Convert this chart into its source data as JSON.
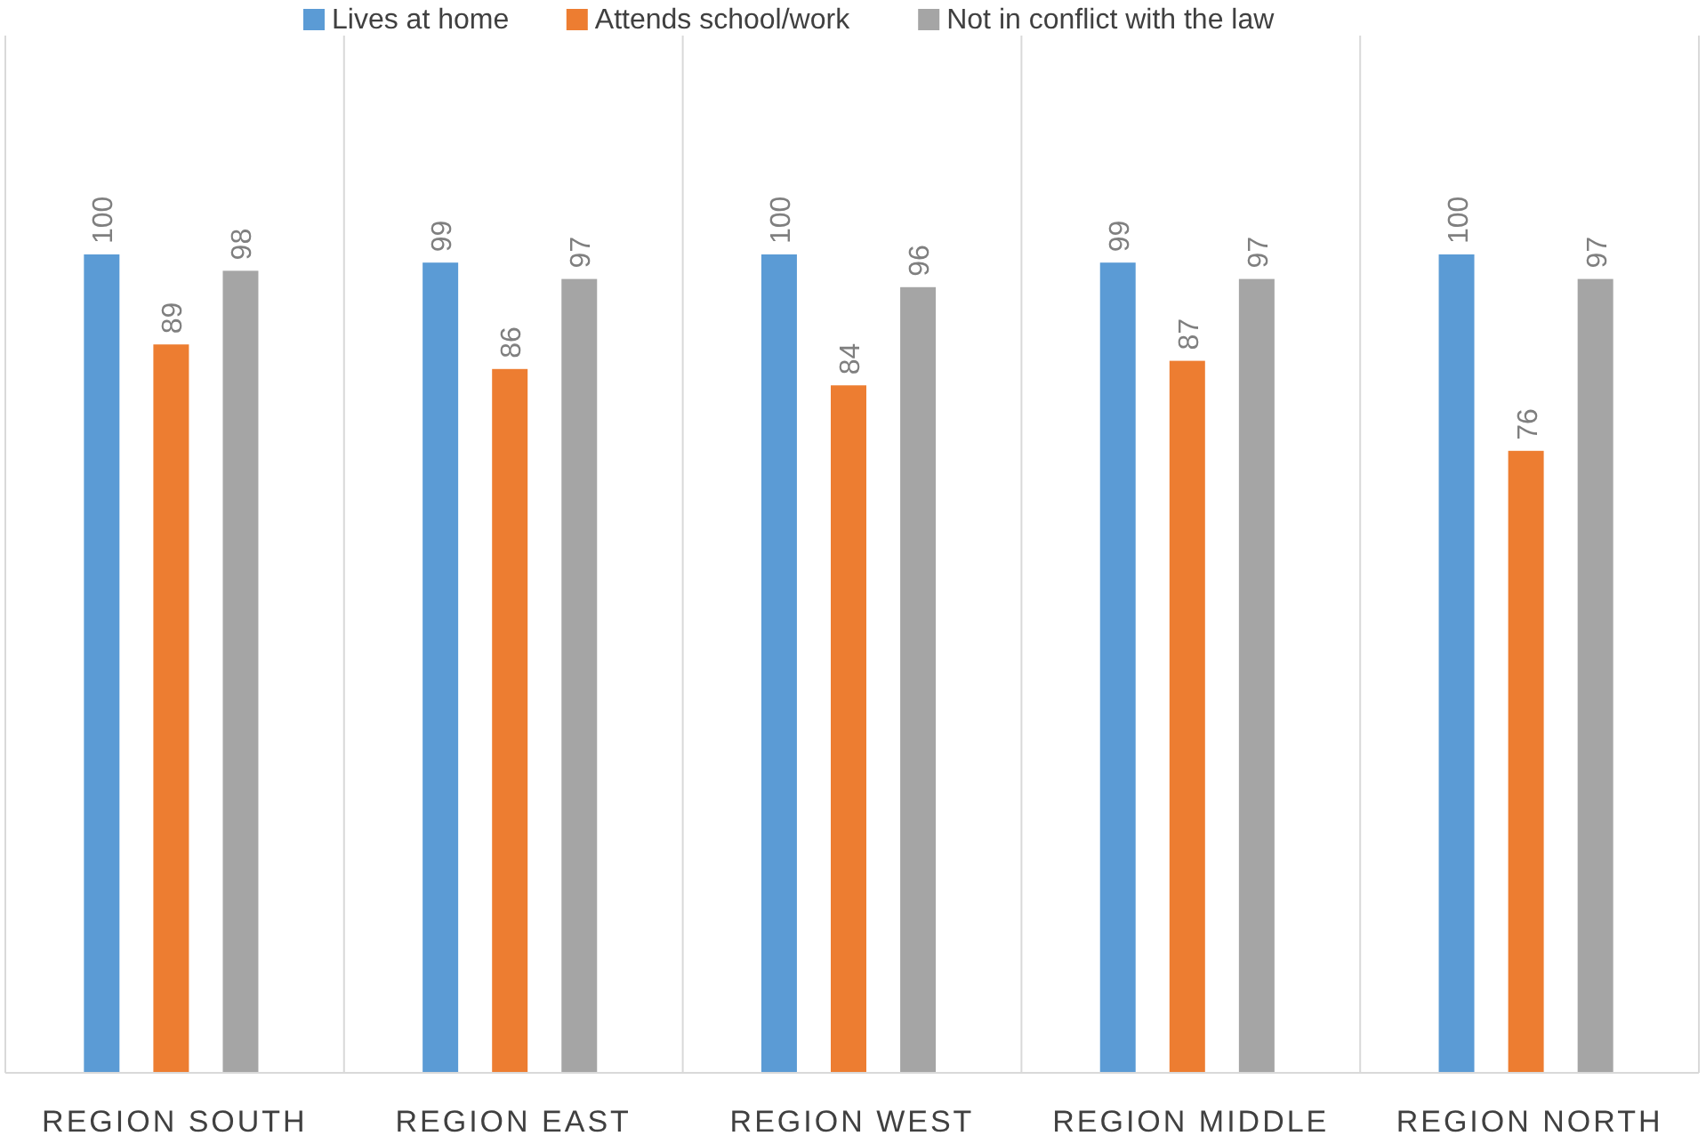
{
  "chart_data": {
    "type": "bar",
    "categories": [
      "REGION SOUTH",
      "REGION EAST",
      "REGION WEST",
      "REGION MIDDLE",
      "REGION NORTH"
    ],
    "series": [
      {
        "name": "Lives at home",
        "color": "#5b9bd5",
        "values": [
          100,
          99,
          100,
          99,
          100
        ]
      },
      {
        "name": "Attends school/work",
        "color": "#ed7d31",
        "values": [
          89,
          86,
          84,
          87,
          76
        ]
      },
      {
        "name": "Not in conflict with the law",
        "color": "#a5a5a5",
        "values": [
          98,
          97,
          96,
          97,
          97
        ]
      }
    ],
    "data_labels": true,
    "grid": "x",
    "legend": "top"
  }
}
